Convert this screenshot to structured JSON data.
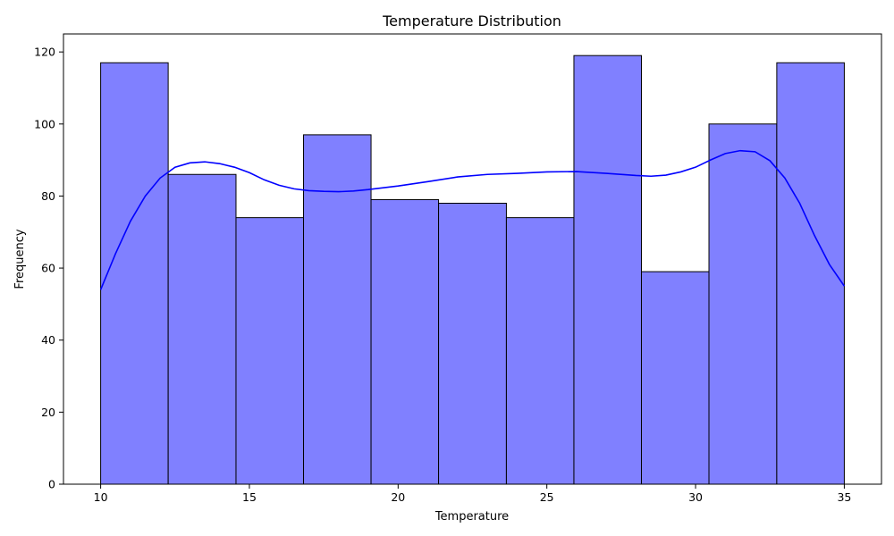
{
  "chart_data": {
    "type": "bar",
    "title": "Temperature Distribution",
    "xlabel": "Temperature",
    "ylabel": "Frequency",
    "xlim": [
      8.75,
      36.25
    ],
    "ylim": [
      0,
      125
    ],
    "x_ticks": [
      "10",
      "15",
      "20",
      "25",
      "30",
      "35"
    ],
    "y_ticks": [
      "0",
      "20",
      "40",
      "60",
      "80",
      "100",
      "120"
    ],
    "bin_edges": [
      10,
      12.27,
      14.55,
      16.82,
      19.09,
      21.36,
      23.64,
      25.91,
      28.18,
      30.45,
      32.73,
      35
    ],
    "values": [
      117,
      86,
      74,
      97,
      79,
      78,
      74,
      119,
      59,
      100,
      117
    ],
    "kde_line": {
      "x": [
        10,
        10.5,
        11,
        11.5,
        12,
        12.5,
        13,
        13.5,
        14,
        14.5,
        15,
        15.5,
        16,
        16.5,
        17,
        17.5,
        18,
        18.5,
        19,
        19.5,
        20,
        21,
        22,
        23,
        24,
        25,
        26,
        27,
        28,
        28.5,
        29,
        29.5,
        30,
        30.5,
        31,
        31.5,
        32,
        32.5,
        33,
        33.5,
        34,
        34.5,
        35
      ],
      "y": [
        54,
        64,
        73,
        80,
        85,
        88,
        89.2,
        89.5,
        89,
        88,
        86.5,
        84.5,
        83,
        82,
        81.5,
        81.3,
        81.2,
        81.4,
        81.8,
        82.3,
        82.8,
        84,
        85.3,
        86,
        86.3,
        86.7,
        86.8,
        86.3,
        85.7,
        85.5,
        85.8,
        86.7,
        88,
        90,
        91.8,
        92.6,
        92.3,
        89.8,
        85,
        78,
        69,
        61,
        55
      ]
    },
    "bar_fill": "#8080ff",
    "bar_edge": "#000000",
    "line_color": "#0000ff",
    "grid": false,
    "legend": false
  }
}
